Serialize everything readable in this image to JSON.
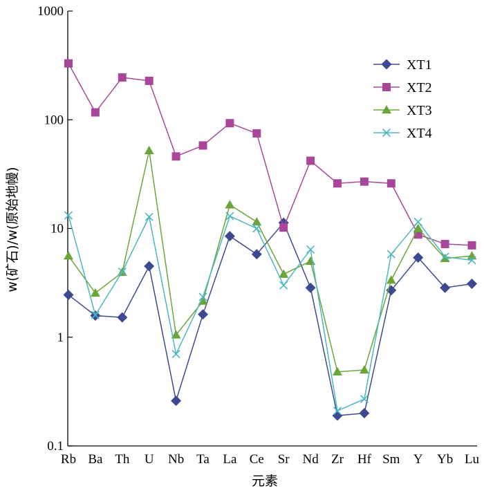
{
  "chart_data": {
    "type": "line",
    "y_scale": "log",
    "ylim": [
      0.1,
      1000
    ],
    "y_ticks": [
      {
        "value": 0.1,
        "label": "0.1"
      },
      {
        "value": 1,
        "label": "1"
      },
      {
        "value": 10,
        "label": "10"
      },
      {
        "value": 100,
        "label": "100"
      },
      {
        "value": 1000,
        "label": "1000"
      }
    ],
    "categories": [
      "Rb",
      "Ba",
      "Th",
      "U",
      "Nb",
      "Ta",
      "La",
      "Ce",
      "Sr",
      "Nd",
      "Zr",
      "Hf",
      "Sm",
      "Y",
      "Yb",
      "Lu"
    ],
    "xlabel": "元素",
    "ylabel": "w(矿石)/w(原始地幔)",
    "legend_position": "top-right",
    "grid": false,
    "series": [
      {
        "name": "XT1",
        "color": "#3d4a91",
        "marker": "diamond",
        "values": [
          2.45,
          1.58,
          1.52,
          4.5,
          0.26,
          1.62,
          8.5,
          5.8,
          11.3,
          2.85,
          0.19,
          0.2,
          2.7,
          5.4,
          2.85,
          3.1
        ]
      },
      {
        "name": "XT2",
        "color": "#a8479a",
        "marker": "square",
        "values": [
          330,
          117,
          245,
          228,
          46,
          58,
          93,
          75,
          10.2,
          42,
          26,
          27,
          26,
          8.8,
          7.2,
          7.0
        ]
      },
      {
        "name": "XT3",
        "color": "#6ba539",
        "marker": "triangle",
        "values": [
          5.6,
          2.55,
          3.95,
          52,
          1.05,
          2.15,
          16.5,
          11.5,
          3.8,
          5.0,
          0.48,
          0.5,
          3.35,
          10,
          5.3,
          5.6
        ]
      },
      {
        "name": "XT4",
        "color": "#4cb7c0",
        "marker": "x",
        "values": [
          13.2,
          1.6,
          4.0,
          12.8,
          0.7,
          2.35,
          13,
          10,
          3.0,
          6.4,
          0.21,
          0.27,
          5.8,
          11.5,
          5.5,
          5.1
        ]
      }
    ]
  }
}
